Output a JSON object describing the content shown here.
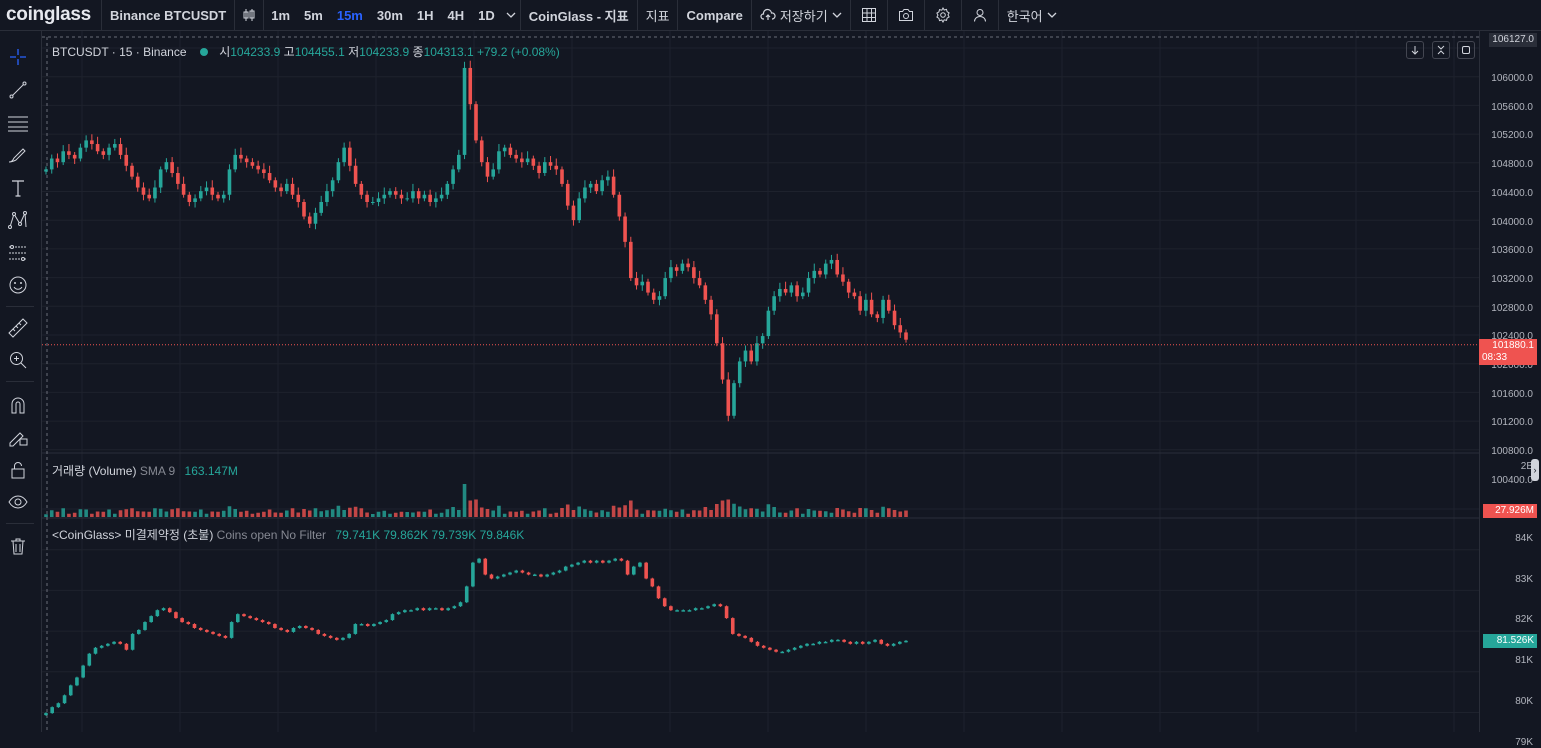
{
  "topbar": {
    "logo": "coinglass",
    "symbol": "Binance BTCUSDT",
    "intervals": [
      "1m",
      "5m",
      "15m",
      "30m",
      "1H",
      "4H",
      "1D"
    ],
    "active_interval": "15m",
    "indicator_coinglass": "CoinGlass - 지표",
    "indicator": "지표",
    "compare": "Compare",
    "save": "저장하기",
    "language": "한국어"
  },
  "main_legend": {
    "symbol": "BTCUSDT · 15 · Binance",
    "open_label": "시",
    "open": "104233.9",
    "high_label": "고",
    "high": "104455.1",
    "low_label": "저",
    "low": "104233.9",
    "close_label": "종",
    "close": "104313.1",
    "change": "+79.2 (+0.08%)"
  },
  "volume_legend": {
    "name": "거래량 (Volume)",
    "sma": "SMA 9",
    "value": "163.147M"
  },
  "oi_legend": {
    "name": "<CoinGlass> 미결제약정 (초불)",
    "filter": "Coins open No Filter",
    "o": "79.741K",
    "h": "79.862K",
    "l": "79.739K",
    "c": "79.846K"
  },
  "price_axis": {
    "top_value": "106127.0",
    "labels": [
      "106000.0",
      "105600.0",
      "105200.0",
      "104800.0",
      "104400.0",
      "104000.0",
      "103600.0",
      "103200.0",
      "102800.0",
      "102400.0",
      "102000.0",
      "101600.0",
      "101200.0",
      "100800.0",
      "100400.0"
    ],
    "current_price": "101880.1",
    "countdown": "08:33",
    "volume_labels": [
      "2B"
    ],
    "volume_current": "27.926M",
    "oi_labels": [
      "84K",
      "83K",
      "82K",
      "81K",
      "80K",
      "79K"
    ],
    "oi_current": "81.526K"
  },
  "colors": {
    "background": "#131722",
    "up": "#26a69a",
    "down": "#ef5350",
    "accent": "#2962ff",
    "grid": "#1e222d"
  },
  "chart_data": [
    {
      "type": "candlestick",
      "title": "BTCUSDT · 15 · Binance",
      "ylim": [
        100400,
        106127
      ],
      "close": [
        104300,
        104450,
        104400,
        104550,
        104500,
        104450,
        104600,
        104700,
        104650,
        104550,
        104500,
        104600,
        104650,
        104500,
        104350,
        104200,
        104050,
        103950,
        103900,
        104050,
        104300,
        104400,
        104250,
        104100,
        103950,
        103850,
        103900,
        104000,
        104050,
        103950,
        103900,
        103950,
        104300,
        104500,
        104450,
        104400,
        104350,
        104300,
        104250,
        104150,
        104050,
        104000,
        104100,
        103950,
        103850,
        103650,
        103550,
        103700,
        103850,
        104000,
        104150,
        104400,
        104600,
        104350,
        104100,
        103950,
        103850,
        103850,
        103900,
        103950,
        104000,
        103950,
        103900,
        103900,
        104000,
        103900,
        103950,
        103850,
        103900,
        103950,
        104100,
        104300,
        104500,
        105700,
        105200,
        104700,
        104400,
        104200,
        104300,
        104550,
        104600,
        104500,
        104450,
        104400,
        104450,
        104350,
        104250,
        104400,
        104350,
        104300,
        104100,
        103800,
        103600,
        103900,
        104050,
        104100,
        104000,
        104150,
        104200,
        103950,
        103650,
        103300,
        102800,
        102700,
        102750,
        102600,
        102500,
        102550,
        102800,
        102950,
        102900,
        103000,
        102950,
        102800,
        102700,
        102500,
        102300,
        101900,
        101400,
        100900,
        101350,
        101650,
        101800,
        101650,
        101900,
        102000,
        102350,
        102550,
        102650,
        102600,
        102700,
        102550,
        102600,
        102800,
        102900,
        102850,
        103000,
        103050,
        102850,
        102750,
        102600,
        102550,
        102350,
        102500,
        102300,
        102250,
        102500,
        102350,
        102150,
        102050,
        101950
      ],
      "current_price": 101880.1
    },
    {
      "type": "bar",
      "title": "거래량 (Volume)",
      "note": "Volume bars per candle; max near 2B",
      "peak_value": "2B"
    },
    {
      "type": "candlestick",
      "title": "<CoinGlass> 미결제약정 (초불)",
      "ylim": [
        79500,
        84300
      ],
      "close": [
        79700,
        79850,
        79950,
        80150,
        80400,
        80600,
        80900,
        81200,
        81350,
        81400,
        81450,
        81500,
        81450,
        81300,
        81700,
        81800,
        82000,
        82150,
        82300,
        82350,
        82250,
        82100,
        82000,
        81950,
        81850,
        81800,
        81750,
        81700,
        81650,
        81600,
        82000,
        82200,
        82150,
        82100,
        82050,
        82000,
        81950,
        81850,
        81800,
        81750,
        81850,
        81900,
        81850,
        81800,
        81700,
        81650,
        81600,
        81550,
        81600,
        81700,
        81950,
        81950,
        81900,
        81950,
        82000,
        82050,
        82200,
        82250,
        82300,
        82300,
        82350,
        82300,
        82350,
        82350,
        82300,
        82350,
        82400,
        82500,
        82900,
        83500,
        83600,
        83200,
        83100,
        83150,
        83200,
        83250,
        83300,
        83250,
        83200,
        83200,
        83150,
        83200,
        83250,
        83300,
        83400,
        83450,
        83500,
        83550,
        83500,
        83550,
        83500,
        83550,
        83600,
        83550,
        83200,
        83400,
        83500,
        83100,
        82900,
        82600,
        82400,
        82300,
        82300,
        82300,
        82300,
        82350,
        82350,
        82400,
        82450,
        82400,
        82100,
        81700,
        81650,
        81600,
        81500,
        81400,
        81350,
        81300,
        81250,
        81250,
        81300,
        81350,
        81400,
        81450,
        81450,
        81500,
        81500,
        81550,
        81550,
        81500,
        81450,
        81500,
        81450,
        81500,
        81550,
        81450,
        81400,
        81450,
        81500,
        81526
      ],
      "current_value": 81526
    }
  ]
}
